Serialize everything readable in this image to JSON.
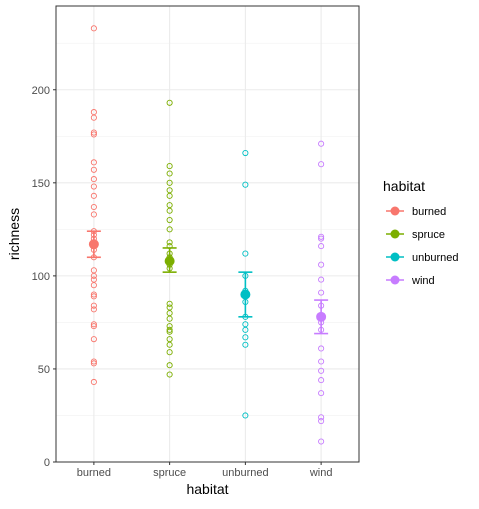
{
  "chart_data": {
    "type": "scatter",
    "xlabel": "habitat",
    "ylabel": "richness",
    "categories": [
      "burned",
      "spruce",
      "unburned",
      "wind"
    ],
    "ylim": [
      0,
      245
    ],
    "yticks": [
      0,
      50,
      100,
      150,
      200
    ],
    "grid": true,
    "legend": {
      "title": "habitat",
      "position": "right",
      "entries": [
        "burned",
        "spruce",
        "unburned",
        "wind"
      ]
    },
    "colors": {
      "burned": "#F8766D",
      "spruce": "#7CAE00",
      "unburned": "#00BFC4",
      "wind": "#C77CFF"
    },
    "series": [
      {
        "name": "burned",
        "points": [
          233,
          188,
          185,
          177,
          176,
          161,
          157,
          152,
          148,
          143,
          137,
          133,
          124,
          122,
          120,
          117,
          114,
          110,
          103,
          100,
          98,
          95,
          90,
          89,
          84,
          82,
          74,
          73,
          66,
          54,
          53,
          43
        ],
        "mean": 117,
        "lower": 110,
        "upper": 124
      },
      {
        "name": "spruce",
        "points": [
          193,
          159,
          155,
          150,
          146,
          143,
          138,
          135,
          130,
          125,
          118,
          116,
          112,
          110,
          106,
          104,
          85,
          83,
          80,
          77,
          73,
          71,
          70,
          66,
          63,
          59,
          52,
          47
        ],
        "mean": 108,
        "lower": 102,
        "upper": 115
      },
      {
        "name": "unburned",
        "points": [
          166,
          149,
          112,
          100,
          92,
          86,
          78,
          74,
          71,
          67,
          63,
          25
        ],
        "mean": 90,
        "lower": 78,
        "upper": 102
      },
      {
        "name": "wind",
        "points": [
          171,
          160,
          121,
          120,
          116,
          106,
          98,
          91,
          84,
          78,
          75,
          71,
          61,
          54,
          49,
          44,
          37,
          24,
          22,
          11
        ],
        "mean": 78,
        "lower": 69,
        "upper": 87
      }
    ]
  }
}
